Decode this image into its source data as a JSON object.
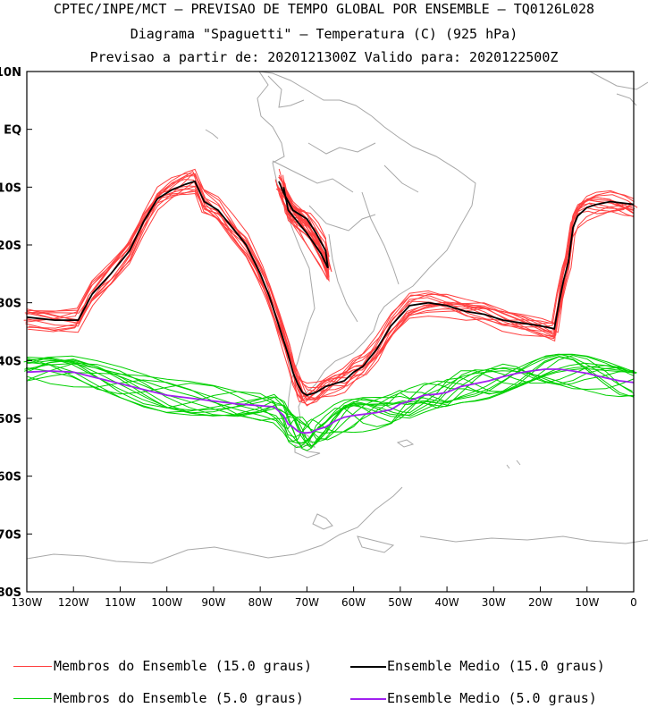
{
  "header": {
    "line1": "CPTEC/INPE/MCT — PREVISAO DE TEMPO GLOBAL POR ENSEMBLE — TQ0126L028",
    "line2": "Diagrama \"Spaguetti\" — Temperatura (C) (925 hPa)",
    "line3": "Previsao a partir de: 2020121300Z  Valido para: 2020122500Z"
  },
  "chart_data": {
    "type": "line",
    "title": "Diagrama \"Spaguetti\" — Temperatura (C) (925 hPa)",
    "x_axis": {
      "range_deg": [
        -130,
        0
      ],
      "tick_labels": [
        "130W",
        "120W",
        "110W",
        "100W",
        "90W",
        "80W",
        "70W",
        "60W",
        "50W",
        "40W",
        "30W",
        "20W",
        "10W",
        "0"
      ]
    },
    "y_axis": {
      "range_deg": [
        -80,
        10
      ],
      "tick_labels": [
        "10N",
        "EQ",
        "10S",
        "20S",
        "30S",
        "40S",
        "50S",
        "60S",
        "70S",
        "80S"
      ]
    },
    "series": [
      {
        "name": "Ensemble Medio (15.0 graus)",
        "color": "#000000",
        "lon": [
          -130,
          -124,
          -119,
          -116,
          -112,
          -108,
          -105,
          -102,
          -99,
          -96,
          -94,
          -92,
          -89,
          -86,
          -83,
          -80,
          -78,
          -76,
          -74,
          -73,
          -72,
          -71,
          -70,
          -68,
          -66,
          -64,
          -62,
          -60,
          -58,
          -55,
          -52,
          -48,
          -44,
          -40,
          -36,
          -32,
          -28,
          -24,
          -20,
          -17,
          -16,
          -15,
          -14,
          -13,
          -12,
          -10,
          -8,
          -5,
          -2,
          0
        ],
        "lat": [
          -32.5,
          -33,
          -33,
          -28.5,
          -25,
          -21,
          -16,
          -12,
          -10.5,
          -9.5,
          -9,
          -12.5,
          -14,
          -17,
          -20,
          -25,
          -29,
          -34,
          -39,
          -42,
          -44,
          -45.5,
          -46,
          -45.5,
          -44.5,
          -44,
          -43.5,
          -42,
          -41,
          -38,
          -34,
          -30.5,
          -30,
          -30.5,
          -31.5,
          -32,
          -33,
          -33.5,
          -34,
          -34.5,
          -30,
          -26,
          -23,
          -17,
          -15,
          -13.5,
          -13,
          -12.5,
          -12.8,
          -13
        ]
      },
      {
        "name": "Ensemble Medio (15.0 graus)",
        "color": "#000000",
        "lon": [
          -76,
          -75,
          -73,
          -70,
          -68,
          -66,
          -65.5,
          -67,
          -70,
          -72,
          -74,
          -75
        ],
        "lat": [
          -9,
          -11,
          -14,
          -15.5,
          -18,
          -21,
          -24,
          -21.5,
          -18,
          -16,
          -14,
          -10
        ]
      },
      {
        "name": "Ensemble Medio (5.0 graus)",
        "color": "#a020f0",
        "lon": [
          -130,
          -125,
          -120,
          -115,
          -110,
          -105,
          -100,
          -95,
          -90,
          -85,
          -80,
          -77,
          -75,
          -74,
          -73,
          -72,
          -71,
          -70,
          -69,
          -68,
          -66,
          -64,
          -62,
          -60,
          -58,
          -55,
          -52,
          -50,
          -48,
          -45,
          -42,
          -40,
          -37,
          -34,
          -31,
          -28,
          -25,
          -22,
          -19,
          -16,
          -13,
          -10,
          -6,
          -3,
          0
        ],
        "lat": [
          -42,
          -41.8,
          -42,
          -43,
          -44,
          -45,
          -46,
          -46.5,
          -47,
          -47.5,
          -47.8,
          -48,
          -49.5,
          -51,
          -51.5,
          -52.2,
          -52.5,
          -52.5,
          -52.4,
          -52,
          -51.5,
          -50.5,
          -49.8,
          -49.5,
          -49.3,
          -49,
          -48.5,
          -47.5,
          -47,
          -46,
          -45.8,
          -45.5,
          -44.5,
          -44,
          -43.5,
          -42.8,
          -42.2,
          -41.8,
          -41.5,
          -41.5,
          -41.8,
          -42.2,
          -43,
          -43.5,
          -43.8
        ]
      }
    ],
    "ensemble_members": [
      {
        "name": "Membros do Ensemble (15.0 graus)",
        "color": "#ff4040",
        "count": 14
      },
      {
        "name": "Membros do Ensemble (5.0 graus)",
        "color": "#00d000",
        "count": 14
      }
    ]
  },
  "legend": {
    "red_members": "Membros do Ensemble (15.0 graus)",
    "black_mean": "Ensemble Medio (15.0 graus)",
    "green_members": "Membros do Ensemble (5.0 graus)",
    "purple_mean": "Ensemble Medio (5.0 graus)"
  },
  "colors": {
    "red": "#ff4040",
    "black": "#000000",
    "green": "#00d000",
    "purple": "#a020f0",
    "coast": "#a8a8a8"
  }
}
